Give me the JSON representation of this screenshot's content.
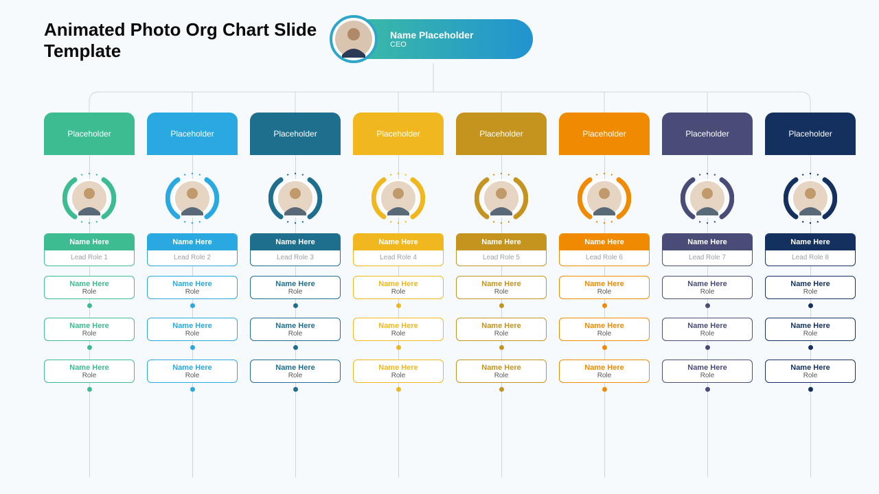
{
  "title": "Animated Photo Org Chart Slide Template",
  "background_color": "#f7fafc",
  "ceo": {
    "name": "Name Placeholder",
    "role": "CEO",
    "gradient_from": "#3fbfa0",
    "gradient_to": "#2193d1",
    "ring_color": "#2ea6c9"
  },
  "connector_color": "#d0d5dd",
  "columns": [
    {
      "dept_label": "Placeholder",
      "color": "#3dbb91",
      "lead_name": "Name Here",
      "lead_role": "Lead Role 1",
      "subs": [
        {
          "name": "Name Here",
          "role": "Role"
        },
        {
          "name": "Name Here",
          "role": "Role"
        },
        {
          "name": "Name Here",
          "role": "Role"
        }
      ]
    },
    {
      "dept_label": "Placeholder",
      "color": "#29a9e0",
      "lead_name": "Name Here",
      "lead_role": "Lead Role 2",
      "subs": [
        {
          "name": "Name Here",
          "role": "Role"
        },
        {
          "name": "Name Here",
          "role": "Role"
        },
        {
          "name": "Name Here",
          "role": "Role"
        }
      ]
    },
    {
      "dept_label": "Placeholder",
      "color": "#1e6e8e",
      "lead_name": "Name Here",
      "lead_role": "Lead Role 3",
      "subs": [
        {
          "name": "Name Here",
          "role": "Role"
        },
        {
          "name": "Name Here",
          "role": "Role"
        },
        {
          "name": "Name Here",
          "role": "Role"
        }
      ]
    },
    {
      "dept_label": "Placeholder",
      "color": "#f0b81e",
      "lead_name": "Name Here",
      "lead_role": "Lead Role 4",
      "subs": [
        {
          "name": "Name Here",
          "role": "Role"
        },
        {
          "name": "Name Here",
          "role": "Role"
        },
        {
          "name": "Name Here",
          "role": "Role"
        }
      ]
    },
    {
      "dept_label": "Placeholder",
      "color": "#c4941f",
      "lead_name": "Name Here",
      "lead_role": "Lead Role 5",
      "subs": [
        {
          "name": "Name Here",
          "role": "Role"
        },
        {
          "name": "Name Here",
          "role": "Role"
        },
        {
          "name": "Name Here",
          "role": "Role"
        }
      ]
    },
    {
      "dept_label": "Placeholder",
      "color": "#f08a00",
      "lead_name": "Name Here",
      "lead_role": "Lead Role 6",
      "subs": [
        {
          "name": "Name Here",
          "role": "Role"
        },
        {
          "name": "Name Here",
          "role": "Role"
        },
        {
          "name": "Name Here",
          "role": "Role"
        }
      ]
    },
    {
      "dept_label": "Placeholder",
      "color": "#4a4c78",
      "lead_name": "Name Here",
      "lead_role": "Lead Role 7",
      "subs": [
        {
          "name": "Name Here",
          "role": "Role"
        },
        {
          "name": "Name Here",
          "role": "Role"
        },
        {
          "name": "Name Here",
          "role": "Role"
        }
      ]
    },
    {
      "dept_label": "Placeholder",
      "color": "#14305e",
      "lead_name": "Name Here",
      "lead_role": "Lead Role 8",
      "subs": [
        {
          "name": "Name Here",
          "role": "Role"
        },
        {
          "name": "Name Here",
          "role": "Role"
        },
        {
          "name": "Name Here",
          "role": "Role"
        }
      ]
    }
  ]
}
